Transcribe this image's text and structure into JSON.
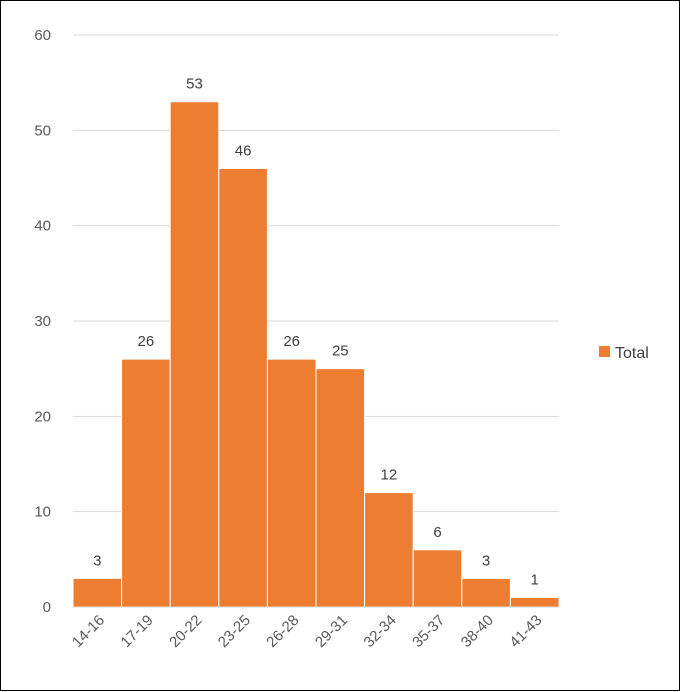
{
  "chart_data": {
    "type": "bar",
    "title": "",
    "xlabel": "",
    "ylabel": "",
    "categories": [
      "14-16",
      "17-19",
      "20-22",
      "23-25",
      "26-28",
      "29-31",
      "32-34",
      "35-37",
      "38-40",
      "41-43"
    ],
    "series": [
      {
        "name": "Total",
        "values": [
          3,
          26,
          53,
          46,
          26,
          25,
          12,
          6,
          3,
          1
        ],
        "color": "#ED7D31"
      }
    ],
    "ylim": [
      0,
      60
    ],
    "yticks": [
      0,
      10,
      20,
      30,
      40,
      50,
      60
    ],
    "grid": true,
    "legend_position": "right",
    "data_labels": true,
    "bar_gap": "none"
  }
}
